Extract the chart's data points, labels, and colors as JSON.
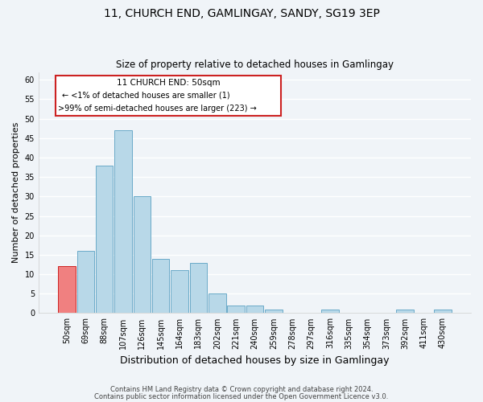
{
  "title1": "11, CHURCH END, GAMLINGAY, SANDY, SG19 3EP",
  "title2": "Size of property relative to detached houses in Gamlingay",
  "xlabel": "Distribution of detached houses by size in Gamlingay",
  "ylabel": "Number of detached properties",
  "bar_color": "#b8d8e8",
  "bar_edge_color": "#6aaac8",
  "first_bar_color": "#f08080",
  "first_bar_edge_color": "#cc2222",
  "categories": [
    "50sqm",
    "69sqm",
    "88sqm",
    "107sqm",
    "126sqm",
    "145sqm",
    "164sqm",
    "183sqm",
    "202sqm",
    "221sqm",
    "240sqm",
    "259sqm",
    "278sqm",
    "297sqm",
    "316sqm",
    "335sqm",
    "354sqm",
    "373sqm",
    "392sqm",
    "411sqm",
    "430sqm"
  ],
  "values": [
    12,
    16,
    38,
    47,
    30,
    14,
    11,
    13,
    5,
    2,
    2,
    1,
    0,
    0,
    1,
    0,
    0,
    0,
    1,
    0,
    1
  ],
  "ylim": [
    0,
    62
  ],
  "yticks": [
    0,
    5,
    10,
    15,
    20,
    25,
    30,
    35,
    40,
    45,
    50,
    55,
    60
  ],
  "annotation_title": "11 CHURCH END: 50sqm",
  "annotation_line1": "← <1% of detached houses are smaller (1)",
  "annotation_line2": ">99% of semi-detached houses are larger (223) →",
  "footer1": "Contains HM Land Registry data © Crown copyright and database right 2024.",
  "footer2": "Contains public sector information licensed under the Open Government Licence v3.0.",
  "background_color": "#f0f4f8",
  "grid_color": "#ffffff"
}
